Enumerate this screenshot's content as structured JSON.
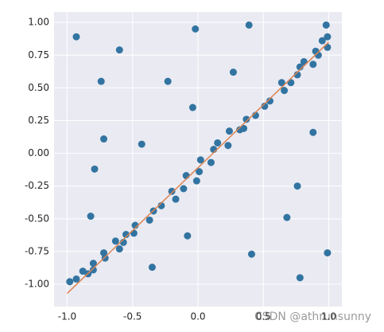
{
  "chart_data": {
    "type": "scatter",
    "xlim": [
      -1.1,
      1.1
    ],
    "ylim": [
      -1.17,
      1.08
    ],
    "xticks": [
      {
        "value": -1,
        "label": "-1.0"
      },
      -0.5,
      {
        "value": 0,
        "label": "0.0"
      },
      0.5,
      {
        "value": 1,
        "label": "1.0"
      }
    ],
    "yticks": [
      {
        "value": 1,
        "label": "1.00"
      },
      0.75,
      {
        "value": 0.5,
        "label": "0.50"
      },
      0.25,
      {
        "value": 0,
        "label": "0.00"
      },
      -0.25,
      {
        "value": -0.5,
        "label": "-0.50"
      },
      -0.75,
      {
        "value": -1,
        "label": "-1.00"
      }
    ],
    "grid": true,
    "background": "#eaeaf2",
    "grid_color": "#ffffff",
    "annotation": "CSDN @athrunsunny",
    "series": [
      {
        "type": "scatter",
        "color": "#3274a1",
        "x": [
          -0.93,
          -0.6,
          -0.02,
          0.39,
          -0.74,
          -0.23,
          0.27,
          -0.04,
          -0.72,
          -0.43,
          -0.79,
          0.88,
          -0.82,
          0.76,
          0.68,
          -0.08,
          -0.35,
          0.41,
          0.99,
          0.78,
          0.98,
          -0.98,
          -0.93,
          -0.88,
          -0.84,
          -0.8,
          -0.8,
          -0.72,
          -0.71,
          -0.63,
          -0.6,
          -0.57,
          -0.55,
          -0.49,
          -0.48,
          -0.37,
          -0.34,
          -0.28,
          -0.2,
          -0.17,
          -0.11,
          -0.09,
          -0.01,
          0.01,
          0.02,
          0.1,
          0.12,
          0.15,
          0.23,
          0.24,
          0.32,
          0.35,
          0.37,
          0.44,
          0.51,
          0.55,
          0.64,
          0.66,
          0.71,
          0.76,
          0.78,
          0.81,
          0.88,
          0.9,
          0.92,
          0.95,
          0.99,
          0.99
        ],
        "values": [
          0.89,
          0.79,
          0.95,
          0.98,
          0.55,
          0.55,
          0.62,
          0.35,
          0.11,
          0.07,
          -0.12,
          0.16,
          -0.48,
          -0.25,
          -0.49,
          -0.63,
          -0.87,
          -0.77,
          -0.76,
          -0.95,
          0.98,
          -0.98,
          -0.96,
          -0.9,
          -0.92,
          -0.84,
          -0.89,
          -0.76,
          -0.8,
          -0.67,
          -0.73,
          -0.68,
          -0.62,
          -0.61,
          -0.55,
          -0.51,
          -0.44,
          -0.4,
          -0.29,
          -0.35,
          -0.27,
          -0.17,
          -0.21,
          -0.14,
          -0.05,
          -0.07,
          0.03,
          0.08,
          0.06,
          0.17,
          0.18,
          0.19,
          0.26,
          0.29,
          0.36,
          0.4,
          0.54,
          0.48,
          0.54,
          0.6,
          0.66,
          0.7,
          0.68,
          0.78,
          0.75,
          0.86,
          0.89,
          0.81
        ]
      },
      {
        "type": "line",
        "color": "#dd8452",
        "x": [
          -1,
          1
        ],
        "values": [
          -1.07,
          0.85
        ]
      }
    ]
  }
}
